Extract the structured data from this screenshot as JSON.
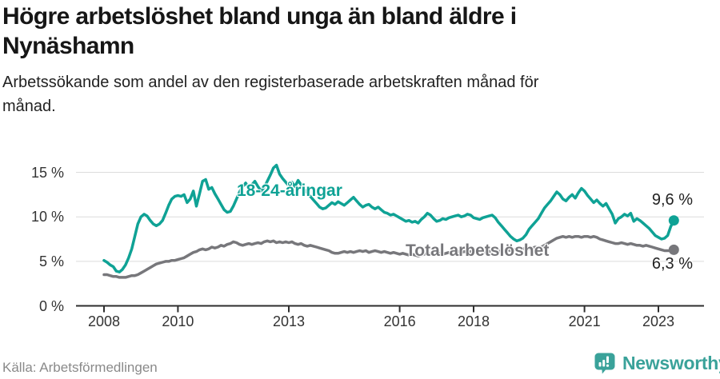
{
  "header": {
    "title": "Högre arbetslöshet bland unga än bland äldre i Nynäshamn",
    "subtitle": "Arbetssökande som andel av den registerbaserade arbetskraften månad för månad."
  },
  "footer": {
    "source": "Källa: Arbetsförmedlingen",
    "brand": "Newsworthy"
  },
  "colors": {
    "accent_teal": "#0FA295",
    "series_gray": "#77777B",
    "brand_teal": "#3AA29A",
    "gridline": "#DCDCDC",
    "axis": "#2E2E2E"
  },
  "chart_data": {
    "type": "line",
    "title": "Högre arbetslöshet bland unga än bland äldre i Nynäshamn",
    "subtitle": "Arbetssökande som andel av den registerbaserade arbetskraften månad för månad.",
    "x_interval": "monthly",
    "x_start": "2008-01",
    "x_end": "2023-06",
    "x_tick_labels": [
      "2008",
      "2010",
      "2013",
      "2016",
      "2018",
      "2021",
      "2023"
    ],
    "y_ticks": [
      {
        "value": 0,
        "label": "0 %"
      },
      {
        "value": 5,
        "label": "5 %"
      },
      {
        "value": 10,
        "label": "10 %"
      },
      {
        "value": 15,
        "label": "15 %"
      }
    ],
    "ylim": [
      0,
      16.5
    ],
    "grid": "horizontal",
    "legend_position": "inline-annotations",
    "series": [
      {
        "name": "18-24-åringar",
        "color": "#0FA295",
        "end_label": "9,6 %",
        "values": [
          5.1,
          4.9,
          4.6,
          4.4,
          3.9,
          3.8,
          4.1,
          4.6,
          5.4,
          6.4,
          7.8,
          9.2,
          10.0,
          10.3,
          10.1,
          9.6,
          9.2,
          9.0,
          9.2,
          9.6,
          10.4,
          11.3,
          12.0,
          12.3,
          12.4,
          12.3,
          12.5,
          11.6,
          12.0,
          12.9,
          11.2,
          12.6,
          14.0,
          14.2,
          13.1,
          13.3,
          12.6,
          12.0,
          11.4,
          10.8,
          10.5,
          10.6,
          11.2,
          12.0,
          12.8,
          13.4,
          13.8,
          13.2,
          13.6,
          14.0,
          13.4,
          12.9,
          13.3,
          14.0,
          14.7,
          15.5,
          15.8,
          14.8,
          14.3,
          13.9,
          13.5,
          13.9,
          13.4,
          14.1,
          13.6,
          13.1,
          12.7,
          12.3,
          11.9,
          11.5,
          11.1,
          10.9,
          11.0,
          11.3,
          11.6,
          11.4,
          11.7,
          11.5,
          11.3,
          11.6,
          11.9,
          12.2,
          11.8,
          11.4,
          11.1,
          11.3,
          11.4,
          11.1,
          10.9,
          11.1,
          10.8,
          10.5,
          10.4,
          10.2,
          10.3,
          10.1,
          9.9,
          9.7,
          9.5,
          9.6,
          9.4,
          9.5,
          9.3,
          9.7,
          10.0,
          10.4,
          10.2,
          9.8,
          9.5,
          9.6,
          9.8,
          9.7,
          9.9,
          10.0,
          10.1,
          10.2,
          10.0,
          10.1,
          10.3,
          10.2,
          9.9,
          9.8,
          9.7,
          9.9,
          10.0,
          10.1,
          10.2,
          9.9,
          9.4,
          9.0,
          8.6,
          8.2,
          7.8,
          7.5,
          7.3,
          7.4,
          7.6,
          8.0,
          8.6,
          9.0,
          9.4,
          9.8,
          10.4,
          11.0,
          11.4,
          11.8,
          12.3,
          12.8,
          12.5,
          12.0,
          11.8,
          12.2,
          12.5,
          12.1,
          12.7,
          13.2,
          12.9,
          12.4,
          12.0,
          11.6,
          11.9,
          11.5,
          11.2,
          11.5,
          10.9,
          10.3,
          9.3,
          9.8,
          10.0,
          10.3,
          10.1,
          10.4,
          9.5,
          9.8,
          9.6,
          9.3,
          9.0,
          8.7,
          8.3,
          7.9,
          7.7,
          7.5,
          7.6,
          7.9,
          8.9,
          9.6
        ]
      },
      {
        "name": "Total arbetslöshet",
        "color": "#77777B",
        "end_label": "6,3 %",
        "values": [
          3.5,
          3.5,
          3.4,
          3.3,
          3.3,
          3.2,
          3.2,
          3.2,
          3.3,
          3.4,
          3.4,
          3.5,
          3.7,
          3.9,
          4.1,
          4.3,
          4.5,
          4.7,
          4.8,
          4.9,
          5.0,
          5.0,
          5.1,
          5.1,
          5.2,
          5.3,
          5.4,
          5.6,
          5.8,
          6.0,
          6.1,
          6.3,
          6.4,
          6.3,
          6.4,
          6.6,
          6.5,
          6.6,
          6.8,
          6.7,
          6.9,
          7.0,
          7.2,
          7.1,
          6.9,
          6.8,
          6.9,
          7.0,
          6.9,
          7.0,
          7.1,
          7.0,
          7.2,
          7.3,
          7.2,
          7.3,
          7.1,
          7.2,
          7.1,
          7.2,
          7.1,
          7.2,
          7.0,
          6.9,
          7.0,
          6.8,
          6.7,
          6.8,
          6.7,
          6.6,
          6.5,
          6.4,
          6.3,
          6.2,
          6.0,
          5.9,
          5.9,
          6.0,
          6.1,
          6.0,
          6.1,
          6.0,
          6.1,
          6.2,
          6.1,
          6.2,
          6.0,
          6.1,
          6.2,
          6.1,
          6.0,
          6.1,
          6.0,
          5.9,
          6.0,
          5.9,
          5.8,
          5.9,
          5.8,
          5.7,
          5.8,
          5.7,
          5.6,
          5.7,
          5.8,
          5.9,
          5.8,
          5.7,
          5.8,
          5.9,
          5.8,
          5.9,
          6.0,
          5.9,
          6.0,
          6.1,
          6.0,
          6.1,
          6.0,
          6.1,
          6.0,
          6.1,
          6.2,
          6.1,
          6.0,
          6.1,
          6.2,
          6.1,
          6.2,
          6.1,
          6.2,
          6.3,
          6.2,
          6.3,
          6.4,
          6.3,
          6.4,
          6.5,
          6.4,
          6.5,
          6.6,
          6.5,
          6.6,
          6.8,
          7.0,
          7.2,
          7.4,
          7.6,
          7.7,
          7.8,
          7.7,
          7.8,
          7.7,
          7.8,
          7.8,
          7.7,
          7.8,
          7.8,
          7.7,
          7.8,
          7.7,
          7.5,
          7.4,
          7.3,
          7.2,
          7.1,
          7.0,
          7.0,
          7.1,
          7.0,
          6.9,
          7.0,
          6.9,
          6.8,
          6.8,
          6.7,
          6.8,
          6.7,
          6.6,
          6.5,
          6.4,
          6.3,
          6.2,
          6.2,
          6.2,
          6.3
        ]
      }
    ]
  }
}
